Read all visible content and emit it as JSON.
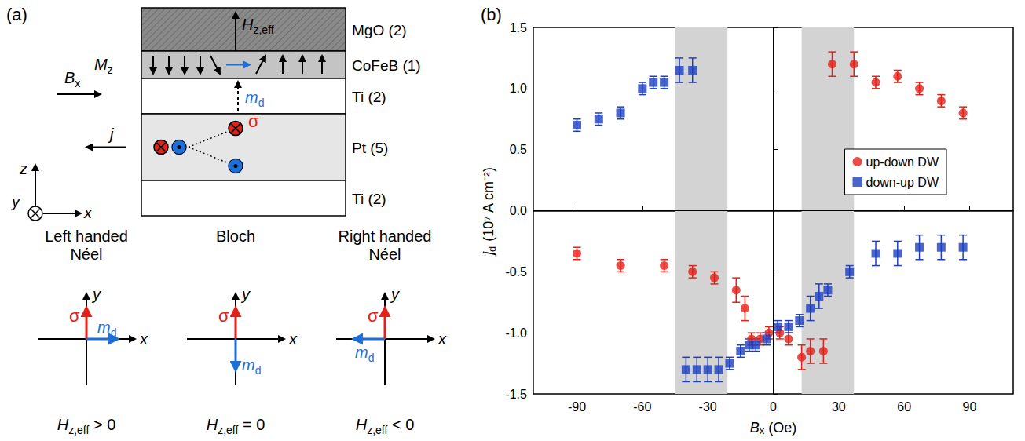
{
  "diagram": {
    "label": "(a)",
    "layers": [
      "MgO (2)",
      "CoFeB (1)",
      "Ti (2)",
      "Pt (5)",
      "Ti (2)"
    ],
    "field": {
      "base": "H",
      "sub": "z,eff"
    },
    "magnetization": {
      "base": "M",
      "sub": "z"
    },
    "applied_field": {
      "base": "B",
      "sub": "x"
    },
    "current": "j",
    "dw_moment": {
      "base": "m",
      "sub": "d"
    },
    "spin": "σ",
    "axes": {
      "z": "z",
      "y": "y",
      "x": "x"
    },
    "wall_types": [
      {
        "name": "Left handed Néel",
        "condition": {
          "base": "H",
          "sub": "z,eff",
          "rest": " > 0"
        }
      },
      {
        "name": "Bloch",
        "condition": {
          "base": "H",
          "sub": "z,eff",
          "rest": " = 0"
        }
      },
      {
        "name": "Right handed Néel",
        "condition": {
          "base": "H",
          "sub": "z,eff",
          "rest": " < 0"
        }
      }
    ]
  },
  "chart_data": {
    "type": "scatter",
    "label": "(b)",
    "x_label": {
      "base": "B",
      "sub": "x",
      "rest": " (Oe)"
    },
    "y_label": {
      "base": "j",
      "sub": "d",
      "rest": " (10⁷ A cm⁻²)"
    },
    "xlim": [
      -110,
      110
    ],
    "xticks": [
      -90,
      -60,
      -30,
      0,
      30,
      60,
      90
    ],
    "ylim": [
      -1.5,
      1.5
    ],
    "yticks": [
      {
        "value": -1.5,
        "label": "-1.5"
      },
      {
        "value": -1.0,
        "label": "-1.0"
      },
      {
        "value": -0.5,
        "label": "-0.5"
      },
      {
        "value": 0,
        "label": "0.0"
      },
      {
        "value": 0.5,
        "label": "0.5"
      },
      {
        "value": 1.0,
        "label": "1.0"
      },
      {
        "value": 1.5,
        "label": "1.5"
      }
    ],
    "grid": false,
    "legend": "right",
    "shaded_regions": [
      [
        -45,
        -21
      ],
      [
        13,
        37
      ]
    ],
    "series": [
      {
        "name": "up-down DW",
        "color": "#e32119",
        "marker": "circle",
        "x": [
          27,
          37,
          47,
          57,
          67,
          77,
          87,
          -90,
          -70,
          -50,
          -37,
          -27,
          -17,
          -13,
          -10,
          -6,
          -2,
          3,
          7,
          13,
          17,
          23
        ],
        "values": [
          1.2,
          1.2,
          1.05,
          1.1,
          1.0,
          0.9,
          0.8,
          -0.35,
          -0.45,
          -0.45,
          -0.5,
          -0.55,
          -0.65,
          -0.8,
          -1.05,
          -1.05,
          -1.0,
          -1.0,
          -1.05,
          -1.2,
          -1.15,
          -1.15
        ],
        "errors": [
          0.1,
          0.1,
          0.05,
          0.05,
          0.05,
          0.05,
          0.05,
          0.05,
          0.05,
          0.05,
          0.05,
          0.05,
          0.1,
          0.1,
          0.05,
          0.05,
          0.05,
          0.05,
          0.05,
          0.1,
          0.1,
          0.1
        ]
      },
      {
        "name": "down-up DW",
        "color": "#1d3fbf",
        "marker": "square",
        "x": [
          -90,
          -80,
          -70,
          -60,
          -55,
          -50,
          -43,
          -37,
          -40,
          -35,
          -30,
          -25,
          -20,
          -15,
          -11,
          -8,
          -3,
          2,
          7,
          12,
          17,
          21,
          25,
          35,
          47,
          57,
          67,
          77,
          87
        ],
        "values": [
          0.7,
          0.75,
          0.8,
          1.0,
          1.05,
          1.05,
          1.15,
          1.15,
          -1.3,
          -1.3,
          -1.3,
          -1.3,
          -1.25,
          -1.15,
          -1.1,
          -1.1,
          -1.05,
          -0.95,
          -0.95,
          -0.9,
          -0.8,
          -0.7,
          -0.65,
          -0.5,
          -0.35,
          -0.35,
          -0.3,
          -0.3,
          -0.3
        ],
        "errors": [
          0.05,
          0.05,
          0.05,
          0.05,
          0.05,
          0.05,
          0.1,
          0.1,
          0.1,
          0.1,
          0.1,
          0.1,
          0.05,
          0.05,
          0.05,
          0.05,
          0.05,
          0.05,
          0.05,
          0.05,
          0.1,
          0.1,
          0.05,
          0.05,
          0.1,
          0.1,
          0.1,
          0.1,
          0.1
        ]
      }
    ]
  }
}
